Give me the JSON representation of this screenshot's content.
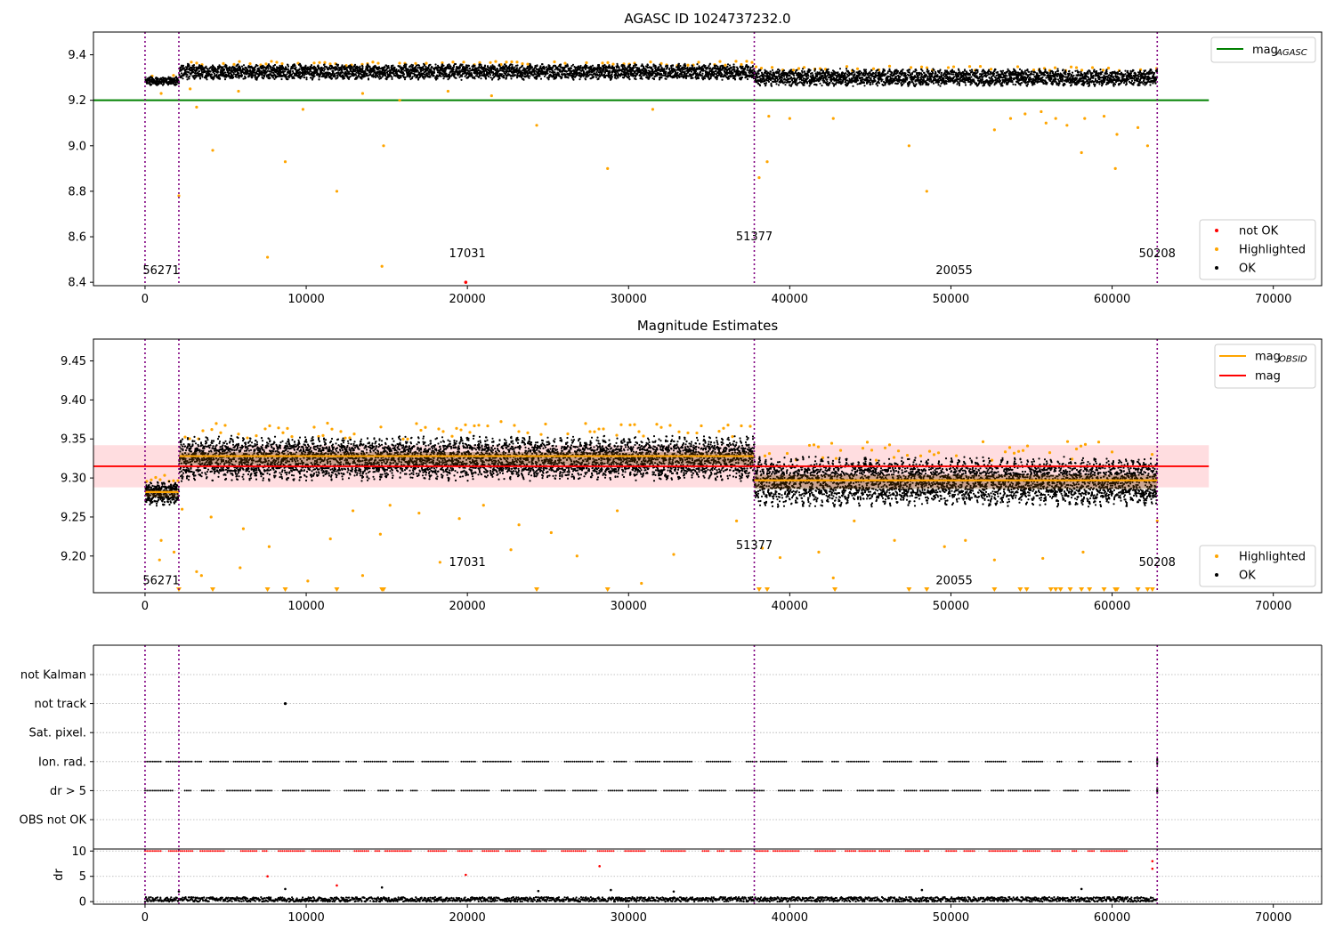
{
  "colors": {
    "ok": "#000000",
    "highlighted": "#ffa500",
    "not_ok": "#ff0000",
    "agasc_line": "#008000",
    "obsid_line": "#ffa500",
    "mag_line": "#ff0000",
    "mag_band": "#ffdde0",
    "obs_boundary": "#800080",
    "grid": "#b0b0b0"
  },
  "chart_data": [
    {
      "type": "scatter",
      "title": "AGASC ID 1024737232.0",
      "xlim": [
        -3200,
        73000
      ],
      "ylim": [
        8.385,
        9.5
      ],
      "xticks": [
        0,
        10000,
        20000,
        30000,
        40000,
        50000,
        60000,
        70000
      ],
      "xtick_labels": [
        "0",
        "10000",
        "20000",
        "30000",
        "40000",
        "50000",
        "60000",
        "70000"
      ],
      "yticks": [
        8.4,
        8.6,
        8.8,
        9.0,
        9.2,
        9.4
      ],
      "ytick_labels": [
        "8.4",
        "8.6",
        "8.8",
        "9.0",
        "9.2",
        "9.4"
      ],
      "legend_lines": [
        {
          "label": "mag",
          "sub": "AGASC",
          "color": "agasc_line"
        }
      ],
      "legend_lines_placement": "top-right",
      "legend_markers": [
        {
          "label": "not OK",
          "color": "not_ok"
        },
        {
          "label": "Highlighted",
          "color": "highlighted"
        },
        {
          "label": "OK",
          "color": "ok"
        }
      ],
      "legend_markers_placement": "lower-right",
      "mag_agasc": 9.2,
      "mag_agasc_x_range": [
        -3200,
        66000
      ],
      "obs_boundaries": [
        0,
        2100,
        37800,
        62800
      ],
      "obs_segments": [
        {
          "x": [
            0,
            2100
          ],
          "center": 9.285,
          "spread": 0.03
        },
        {
          "x": [
            2100,
            37800
          ],
          "center": 9.325,
          "spread": 0.055
        },
        {
          "x": [
            37800,
            62800
          ],
          "center": 9.3,
          "spread": 0.06
        }
      ],
      "obsid_labels": [
        {
          "text": "56271",
          "x": 1000,
          "y": 8.435
        },
        {
          "text": "17031",
          "x": 20000,
          "y": 8.51
        },
        {
          "text": "51377",
          "x": 37800,
          "y": 8.585
        },
        {
          "text": "20055",
          "x": 50200,
          "y": 8.435
        },
        {
          "text": "50208",
          "x": 62800,
          "y": 8.51
        }
      ],
      "highlighted_points": [
        [
          4200,
          8.98
        ],
        [
          7600,
          8.51
        ],
        [
          8700,
          8.93
        ],
        [
          11900,
          8.8
        ],
        [
          14700,
          8.47
        ],
        [
          14800,
          9.0
        ],
        [
          24300,
          9.09
        ],
        [
          28700,
          8.9
        ],
        [
          38100,
          8.86
        ],
        [
          38600,
          8.93
        ],
        [
          47400,
          9.0
        ],
        [
          48500,
          8.8
        ],
        [
          55600,
          9.15
        ],
        [
          57200,
          9.09
        ],
        [
          58100,
          8.97
        ],
        [
          59500,
          9.13
        ],
        [
          60200,
          8.9
        ],
        [
          60300,
          9.05
        ],
        [
          61600,
          9.08
        ],
        [
          62200,
          9.0
        ],
        [
          2100,
          8.78
        ],
        [
          3200,
          9.17
        ],
        [
          9800,
          9.16
        ],
        [
          15800,
          9.2
        ],
        [
          21500,
          9.22
        ],
        [
          31500,
          9.16
        ],
        [
          42700,
          9.12
        ],
        [
          52700,
          9.07
        ],
        [
          53700,
          9.12
        ],
        [
          54600,
          9.14
        ],
        [
          38700,
          9.13
        ],
        [
          40000,
          9.12
        ],
        [
          55900,
          9.1
        ],
        [
          56500,
          9.12
        ],
        [
          58300,
          9.12
        ],
        [
          1000,
          9.23
        ],
        [
          2800,
          9.25
        ],
        [
          5800,
          9.24
        ],
        [
          13500,
          9.23
        ],
        [
          18800,
          9.24
        ]
      ],
      "not_ok_points": [
        [
          19900,
          8.4
        ]
      ]
    },
    {
      "type": "scatter",
      "title": "Magnitude Estimates",
      "xlim": [
        -3200,
        73000
      ],
      "ylim": [
        9.153,
        9.478
      ],
      "xticks": [
        0,
        10000,
        20000,
        30000,
        40000,
        50000,
        60000,
        70000
      ],
      "xtick_labels": [
        "0",
        "10000",
        "20000",
        "30000",
        "40000",
        "50000",
        "60000",
        "70000"
      ],
      "yticks": [
        9.2,
        9.25,
        9.3,
        9.35,
        9.4,
        9.45
      ],
      "ytick_labels": [
        "9.20",
        "9.25",
        "9.30",
        "9.35",
        "9.40",
        "9.45"
      ],
      "legend_lines": [
        {
          "label": "mag",
          "sub": "OBSID",
          "color": "obsid_line"
        },
        {
          "label": "mag",
          "sub": "",
          "color": "mag_line"
        }
      ],
      "legend_lines_placement": "top-right",
      "legend_markers": [
        {
          "label": "Highlighted",
          "color": "highlighted"
        },
        {
          "label": "OK",
          "color": "ok"
        }
      ],
      "legend_markers_placement": "lower-right",
      "mag": 9.315,
      "mag_band": [
        9.288,
        9.342
      ],
      "mag_x_range": [
        -3200,
        66000
      ],
      "obsid_mags": [
        {
          "x": [
            0,
            2100
          ],
          "value": 9.282
        },
        {
          "x": [
            2100,
            37800
          ],
          "value": 9.328
        },
        {
          "x": [
            37800,
            62800
          ],
          "value": 9.297
        }
      ],
      "obs_boundaries": [
        0,
        2100,
        37800,
        62800
      ],
      "obs_segments": [
        {
          "x": [
            0,
            2100
          ],
          "center": 9.28,
          "spread": 0.025
        },
        {
          "x": [
            2100,
            37800
          ],
          "center": 9.325,
          "spread": 0.045
        },
        {
          "x": [
            37800,
            62800
          ],
          "center": 9.295,
          "spread": 0.05
        }
      ],
      "obsid_labels": [
        {
          "text": "56271",
          "x": 1000,
          "y": 9.164
        },
        {
          "text": "17031",
          "x": 20000,
          "y": 9.187
        },
        {
          "text": "51377",
          "x": 37800,
          "y": 9.209
        },
        {
          "text": "20055",
          "x": 50200,
          "y": 9.164
        },
        {
          "text": "50208",
          "x": 62800,
          "y": 9.187
        }
      ],
      "highlighted_points": [
        [
          900,
          9.195
        ],
        [
          1000,
          9.22
        ],
        [
          1800,
          9.205
        ],
        [
          2300,
          9.26
        ],
        [
          3200,
          9.18
        ],
        [
          3500,
          9.175
        ],
        [
          4100,
          9.25
        ],
        [
          5900,
          9.185
        ],
        [
          6100,
          9.235
        ],
        [
          7700,
          9.212
        ],
        [
          10100,
          9.168
        ],
        [
          11500,
          9.222
        ],
        [
          12900,
          9.258
        ],
        [
          13500,
          9.175
        ],
        [
          14600,
          9.228
        ],
        [
          15200,
          9.265
        ],
        [
          17000,
          9.255
        ],
        [
          18300,
          9.192
        ],
        [
          19500,
          9.248
        ],
        [
          21000,
          9.265
        ],
        [
          22700,
          9.208
        ],
        [
          23200,
          9.24
        ],
        [
          25200,
          9.23
        ],
        [
          26800,
          9.2
        ],
        [
          29300,
          9.258
        ],
        [
          30800,
          9.165
        ],
        [
          32800,
          9.202
        ],
        [
          36700,
          9.245
        ],
        [
          38300,
          9.21
        ],
        [
          39400,
          9.198
        ],
        [
          41800,
          9.205
        ],
        [
          42700,
          9.172
        ],
        [
          44000,
          9.245
        ],
        [
          46500,
          9.22
        ],
        [
          49600,
          9.212
        ],
        [
          50900,
          9.22
        ],
        [
          52700,
          9.195
        ],
        [
          55700,
          9.197
        ],
        [
          58200,
          9.205
        ],
        [
          62800,
          9.245
        ]
      ],
      "clipped_low_x": [
        2100,
        4200,
        7600,
        8700,
        11900,
        14700,
        14800,
        24300,
        28700,
        38100,
        38600,
        42800,
        47400,
        48500,
        52700,
        54300,
        54700,
        56200,
        56500,
        56800,
        57400,
        58100,
        58600,
        59500,
        60200,
        60300,
        61600,
        62200,
        62500
      ]
    },
    {
      "type": "scatter",
      "xlim": [
        -3200,
        73000
      ],
      "xticks": [
        0,
        10000,
        20000,
        30000,
        40000,
        50000,
        60000,
        70000
      ],
      "xtick_labels": [
        "0",
        "10000",
        "20000",
        "30000",
        "40000",
        "50000",
        "60000",
        "70000"
      ],
      "flag_rows": [
        "not Kalman",
        "not track",
        "Sat. pixel.",
        "Ion. rad.",
        "dr > 5",
        "OBS not OK"
      ],
      "flag_points": [
        {
          "flag": "not track",
          "x": [
            8700
          ]
        },
        {
          "flag": "Ion. rad.",
          "x_range": [
            0,
            61200
          ],
          "boundary_x": 62800
        },
        {
          "flag": "dr > 5",
          "x_range": [
            0,
            61200
          ],
          "boundary_x": 62800
        }
      ],
      "obs_boundaries": [
        0,
        2100,
        37800,
        62800
      ],
      "dr_panel": {
        "ylabel": "dr",
        "ylim": [
          -0.5,
          10.4
        ],
        "yticks": [
          0,
          5,
          10
        ],
        "ytick_labels": [
          "0",
          "5",
          "10"
        ],
        "red_clipped_value": 10,
        "red_outliers": [
          [
            7600,
            5
          ],
          [
            11900,
            3.2
          ],
          [
            19900,
            5.3
          ],
          [
            28200,
            7
          ],
          [
            62500,
            8
          ],
          [
            62500,
            6.5
          ]
        ],
        "black_outliers": [
          [
            2100,
            2
          ],
          [
            8700,
            2.5
          ],
          [
            14700,
            2.8
          ],
          [
            24400,
            2.1
          ],
          [
            28900,
            2.3
          ],
          [
            32800,
            2.0
          ],
          [
            48200,
            2.3
          ],
          [
            58100,
            2.5
          ]
        ]
      }
    }
  ]
}
